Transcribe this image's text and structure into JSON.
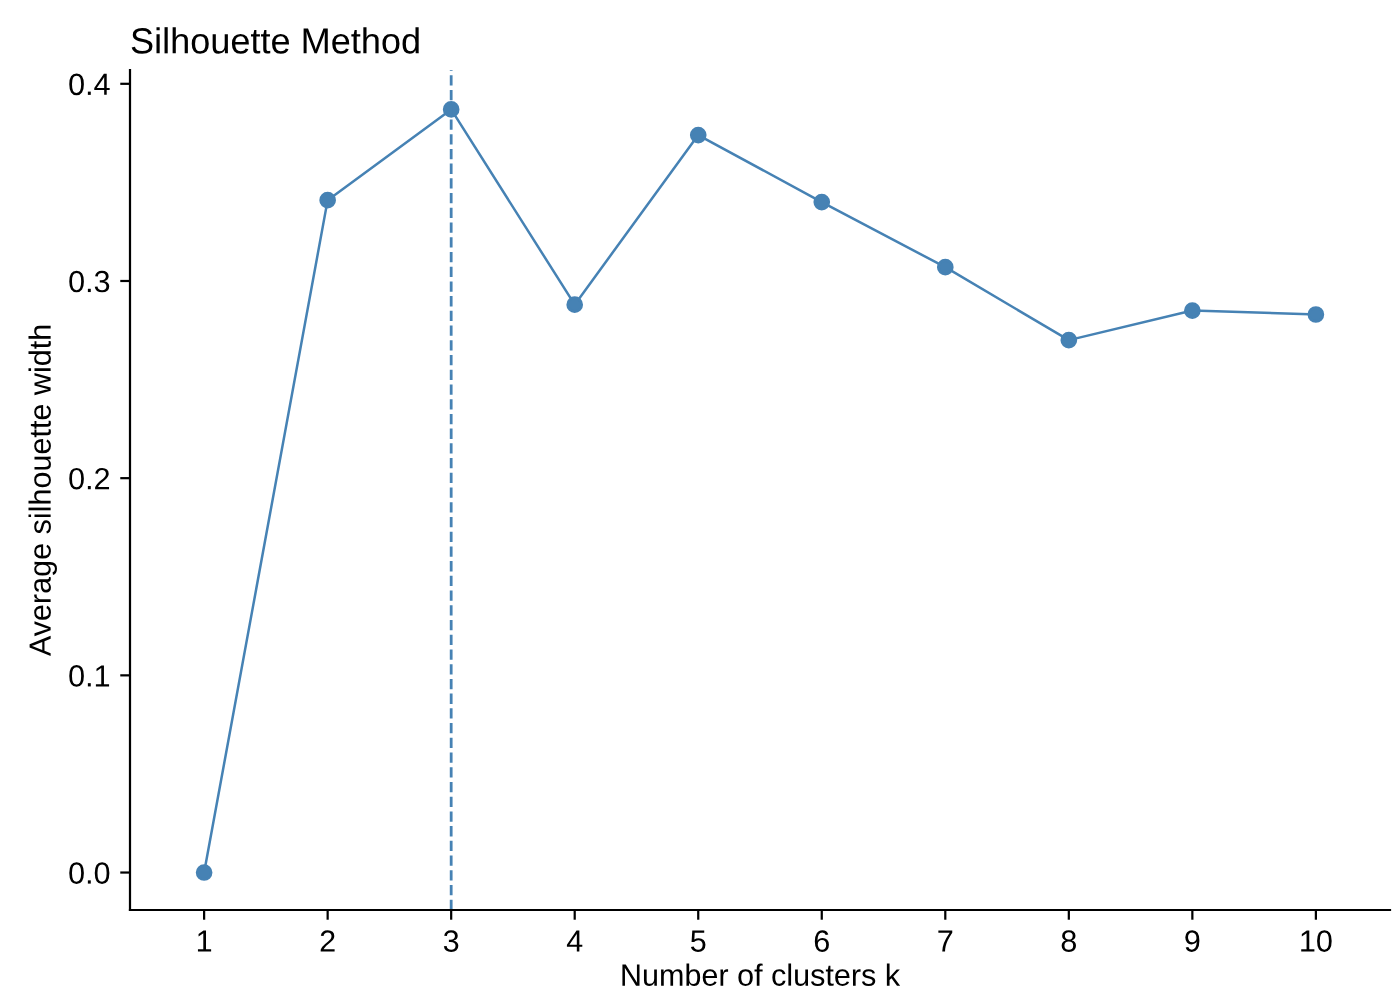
{
  "chart_data": {
    "type": "line",
    "title": "Silhouette Method",
    "xlabel": "Number of clusters k",
    "ylabel": "Average silhouette width",
    "x": [
      1,
      2,
      3,
      4,
      5,
      6,
      7,
      8,
      9,
      10
    ],
    "series": [
      {
        "color": "#4682b4",
        "values": [
          0.0,
          0.341,
          0.387,
          0.288,
          0.374,
          0.34,
          0.307,
          0.27,
          0.285,
          0.283
        ]
      }
    ],
    "xlim": [
      0.4,
      10.6
    ],
    "xticks": [
      1,
      2,
      3,
      4,
      5,
      6,
      7,
      8,
      9,
      10
    ],
    "ylim": [
      -0.019,
      0.407
    ],
    "yticks": [
      {
        "value": 0.0,
        "label": "0.0"
      },
      {
        "value": 0.1,
        "label": "0.1"
      },
      {
        "value": 0.2,
        "label": "0.2"
      },
      {
        "value": 0.3,
        "label": "0.3"
      },
      {
        "value": 0.4,
        "label": "0.4"
      }
    ],
    "ref_lines": [
      {
        "axis": "x",
        "value": 3,
        "color": "#4682b4",
        "line_style": "dashed"
      }
    ],
    "marker": "circle",
    "line_style": "solid",
    "grid": false,
    "legend": false
  }
}
